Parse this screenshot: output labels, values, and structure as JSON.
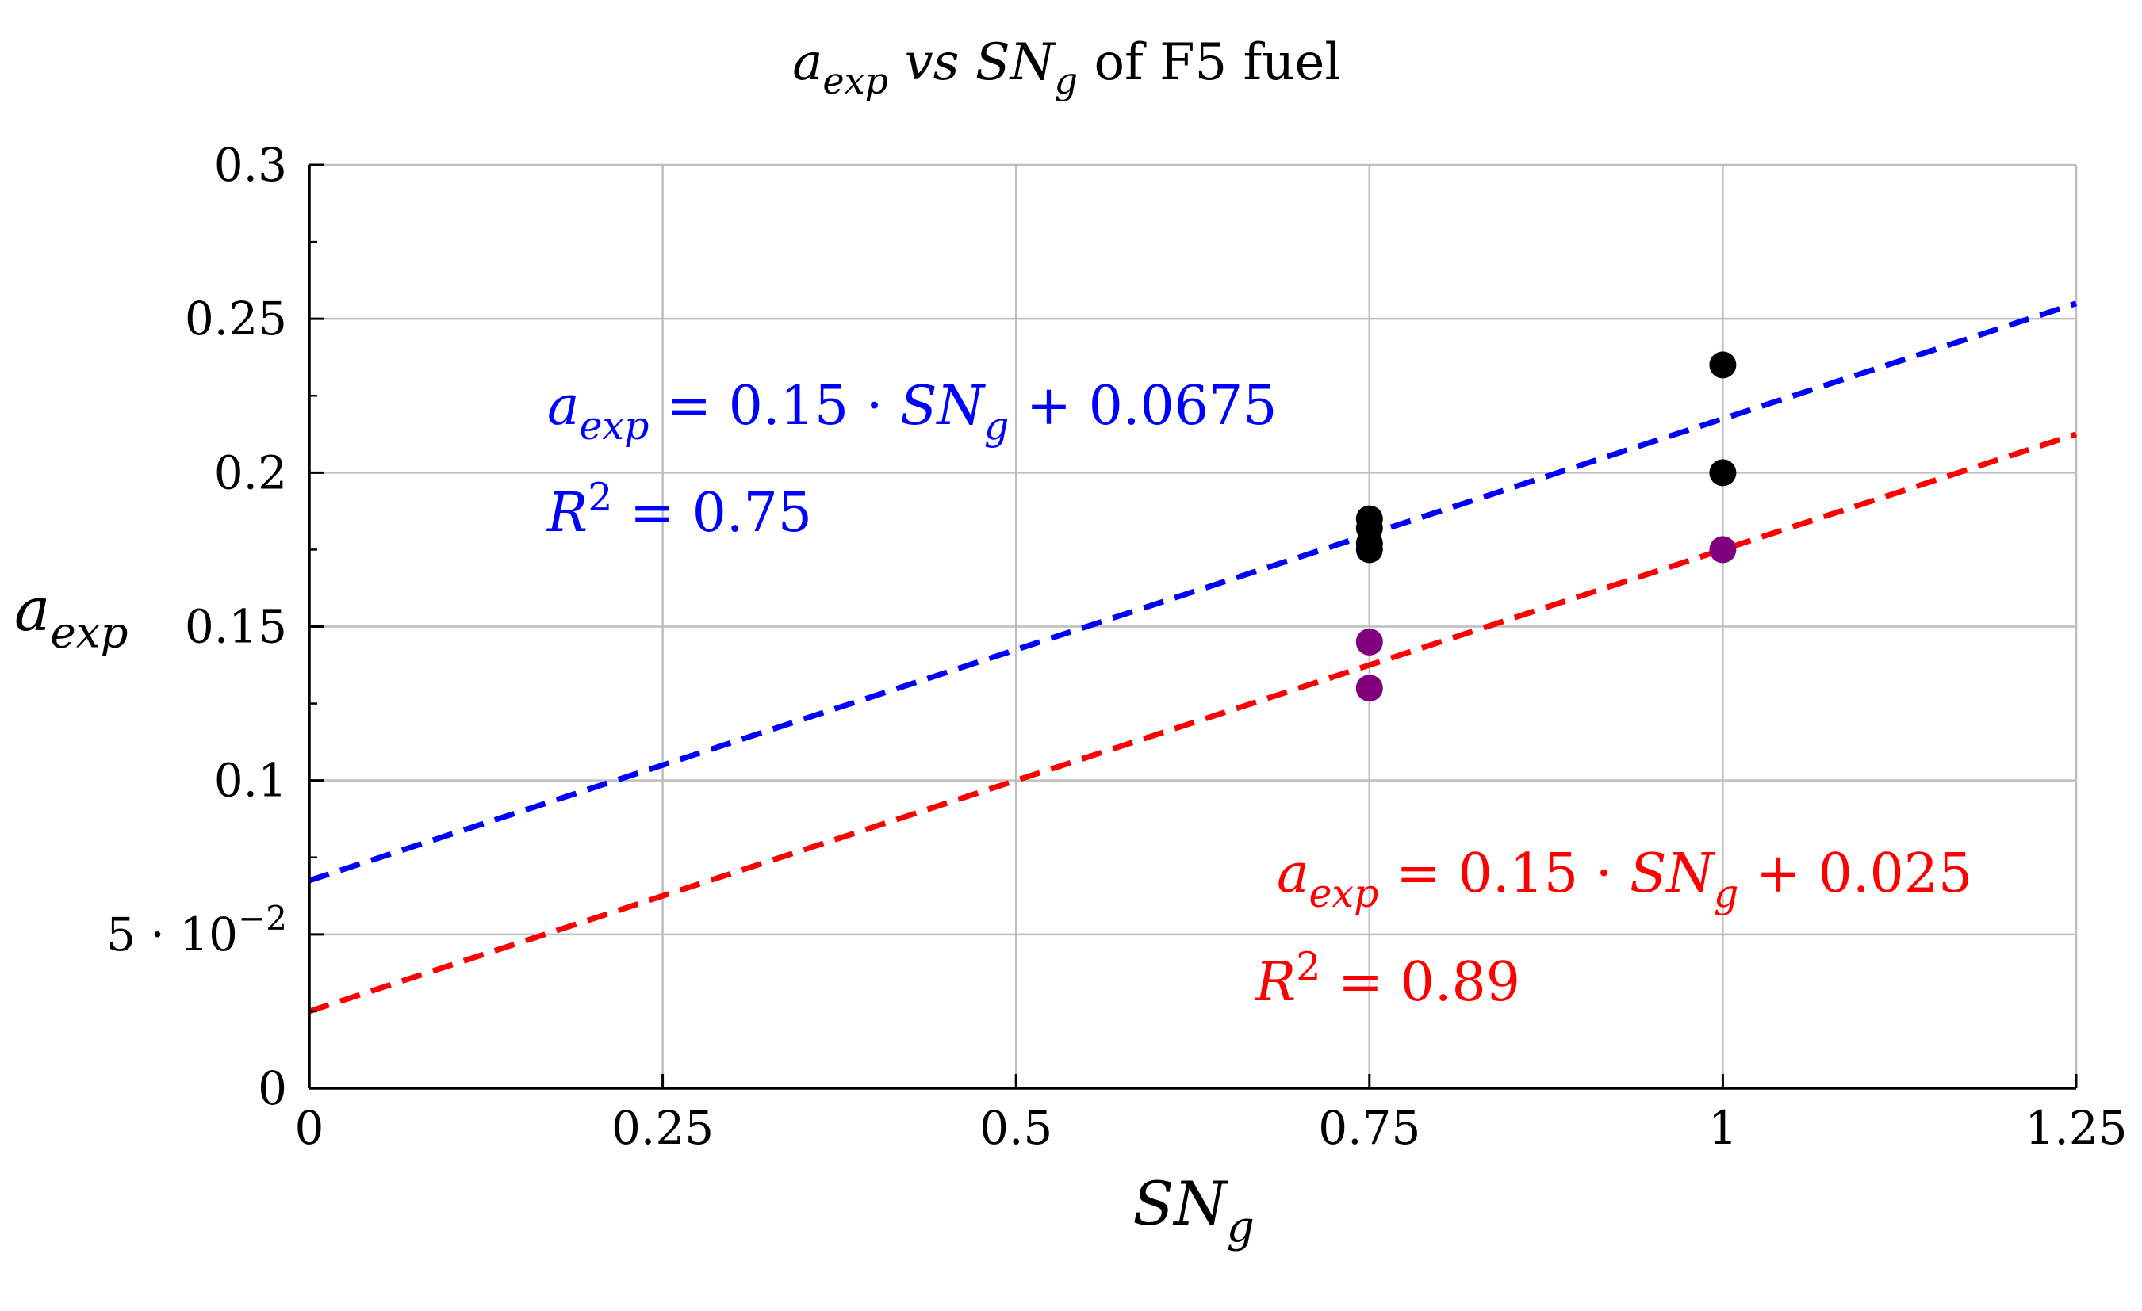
{
  "chart_data": {
    "type": "scatter",
    "title": {
      "parts": [
        {
          "text": "a",
          "style": "italic"
        },
        {
          "text": "exp",
          "style": "italic-sub"
        },
        {
          "text": " vs ",
          "style": "italic"
        },
        {
          "text": "SN",
          "style": "italic"
        },
        {
          "text": "g",
          "style": "italic-sub"
        },
        {
          "text": " of F5 fuel",
          "style": "normal"
        }
      ]
    },
    "xlabel": {
      "parts": [
        {
          "text": "SN",
          "style": "italic"
        },
        {
          "text": "g",
          "style": "italic-sub"
        }
      ]
    },
    "ylabel": {
      "parts": [
        {
          "text": "a",
          "style": "italic"
        },
        {
          "text": "exp",
          "style": "italic-sub"
        }
      ]
    },
    "xlim": [
      0,
      1.25
    ],
    "ylim": [
      0,
      0.3
    ],
    "xticks": [
      {
        "value": 0,
        "label": "0"
      },
      {
        "value": 0.25,
        "label": "0.25"
      },
      {
        "value": 0.5,
        "label": "0.5"
      },
      {
        "value": 0.75,
        "label": "0.75"
      },
      {
        "value": 1,
        "label": "1"
      },
      {
        "value": 1.25,
        "label": "1.25"
      }
    ],
    "yticks": [
      {
        "value": 0,
        "label": "0"
      },
      {
        "value": 0.05,
        "label": "5 · 10",
        "sup": "−2"
      },
      {
        "value": 0.1,
        "label": "0.1"
      },
      {
        "value": 0.15,
        "label": "0.15"
      },
      {
        "value": 0.2,
        "label": "0.2"
      },
      {
        "value": 0.25,
        "label": "0.25"
      },
      {
        "value": 0.3,
        "label": "0.3"
      }
    ],
    "grid": true,
    "series": [
      {
        "color": "#000000",
        "points": [
          {
            "x": 0.75,
            "y": 0.185
          },
          {
            "x": 0.75,
            "y": 0.182
          },
          {
            "x": 0.75,
            "y": 0.177
          },
          {
            "x": 0.75,
            "y": 0.175
          },
          {
            "x": 1,
            "y": 0.235
          },
          {
            "x": 1,
            "y": 0.2
          }
        ]
      },
      {
        "color": "#800080",
        "points": [
          {
            "x": 0.75,
            "y": 0.145
          },
          {
            "x": 0.75,
            "y": 0.13
          },
          {
            "x": 1,
            "y": 0.175
          }
        ]
      }
    ],
    "fits": [
      {
        "color": "#0000ff",
        "slope": 0.15,
        "intercept": 0.0675,
        "x_range": [
          0,
          1.25
        ],
        "equation": {
          "parts": [
            {
              "text": "a",
              "style": "italic"
            },
            {
              "text": "exp",
              "style": "italic-sub"
            },
            {
              "text": " = 0.15 · ",
              "style": "normal"
            },
            {
              "text": "SN",
              "style": "italic"
            },
            {
              "text": "g",
              "style": "italic-sub"
            },
            {
              "text": " + 0.0675",
              "style": "normal"
            }
          ]
        },
        "r2": {
          "parts": [
            {
              "text": "R",
              "style": "italic"
            },
            {
              "text": "2",
              "style": "sup"
            },
            {
              "text": " = 0.75",
              "style": "normal"
            }
          ]
        }
      },
      {
        "color": "#ff0000",
        "slope": 0.15,
        "intercept": 0.025,
        "x_range": [
          0,
          1.25
        ],
        "equation": {
          "parts": [
            {
              "text": "a",
              "style": "italic"
            },
            {
              "text": "exp",
              "style": "italic-sub"
            },
            {
              "text": " = 0.15 · ",
              "style": "normal"
            },
            {
              "text": "SN",
              "style": "italic"
            },
            {
              "text": "g",
              "style": "italic-sub"
            },
            {
              "text": " + 0.025",
              "style": "normal"
            }
          ]
        },
        "r2": {
          "parts": [
            {
              "text": "R",
              "style": "italic"
            },
            {
              "text": "2",
              "style": "sup"
            },
            {
              "text": " = 0.89",
              "style": "normal"
            }
          ]
        }
      }
    ]
  }
}
